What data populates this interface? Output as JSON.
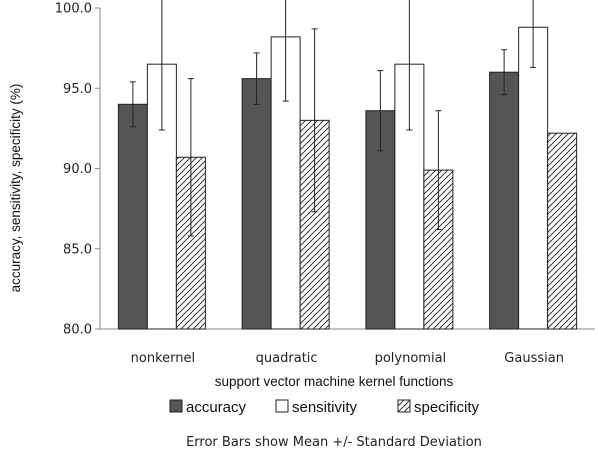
{
  "chart_data": {
    "type": "bar",
    "title": "",
    "xlabel": "support vector machine kernel functions",
    "ylabel": "accuracy, sensitivity, specificity (%)",
    "ylim": [
      80,
      100
    ],
    "yticks": [
      "80.0",
      "85.0",
      "90.0",
      "95.0",
      "100.0"
    ],
    "ytick_values": [
      80,
      85,
      90,
      95,
      100
    ],
    "grid": false,
    "legend_position": "bottom",
    "categories": [
      "nonkernel",
      "quadratic",
      "polynomial",
      "Gaussian"
    ],
    "series": [
      {
        "name": "accuracy",
        "fill": "#555555",
        "pattern": "solid",
        "values": [
          94.0,
          95.6,
          93.6,
          96.0
        ],
        "error": [
          1.4,
          1.6,
          2.5,
          1.4
        ]
      },
      {
        "name": "sensitivity",
        "fill": "#ffffff",
        "pattern": "solid",
        "values": [
          96.5,
          98.2,
          96.5,
          98.8
        ],
        "error": [
          4.1,
          4.0,
          4.1,
          2.5
        ]
      },
      {
        "name": "specificity",
        "fill": "#ffffff",
        "pattern": "diagonal-hatch",
        "values": [
          90.7,
          93.0,
          89.9,
          92.2
        ],
        "error": [
          4.9,
          5.7,
          3.7,
          0
        ]
      }
    ],
    "note": "Error Bars show Mean +/- Standard Deviation"
  }
}
